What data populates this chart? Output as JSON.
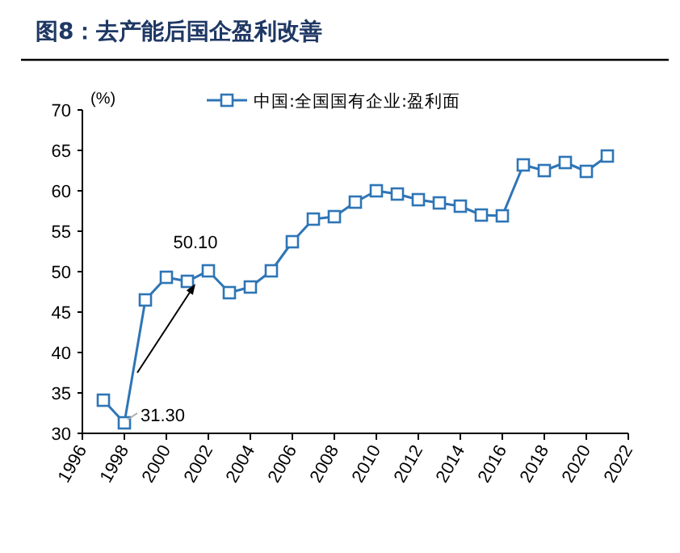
{
  "chart_data": {
    "type": "line",
    "title": "图8：去产能后国企盈利改善",
    "ylabel": "(%)",
    "x": [
      1997,
      1998,
      1999,
      2000,
      2001,
      2002,
      2003,
      2004,
      2005,
      2006,
      2007,
      2008,
      2009,
      2010,
      2011,
      2012,
      2013,
      2014,
      2015,
      2016,
      2017,
      2018,
      2019,
      2020,
      2021
    ],
    "series": [
      {
        "name": "中国:全国国有企业:盈利面",
        "color": "#2e75b6",
        "values": [
          34.1,
          31.3,
          46.5,
          49.3,
          48.8,
          50.1,
          47.4,
          48.1,
          50.1,
          53.7,
          56.5,
          56.8,
          58.6,
          60.0,
          59.6,
          58.9,
          58.5,
          58.1,
          57.0,
          56.9,
          63.2,
          62.5,
          63.5,
          62.4,
          64.3
        ]
      }
    ],
    "xlim": [
      1996,
      2022
    ],
    "xticks": [
      1996,
      1998,
      2000,
      2002,
      2004,
      2006,
      2008,
      2010,
      2012,
      2014,
      2016,
      2018,
      2020,
      2022
    ],
    "ylim": [
      30,
      70
    ],
    "yticks": [
      30,
      35,
      40,
      45,
      50,
      55,
      60,
      65,
      70
    ],
    "marker": "square",
    "legend": "top",
    "grid": false,
    "annotations": [
      {
        "text": "50.10",
        "x": 2002,
        "y": 50.1
      },
      {
        "text": "31.30",
        "x": 1998,
        "y": 31.3
      }
    ]
  }
}
